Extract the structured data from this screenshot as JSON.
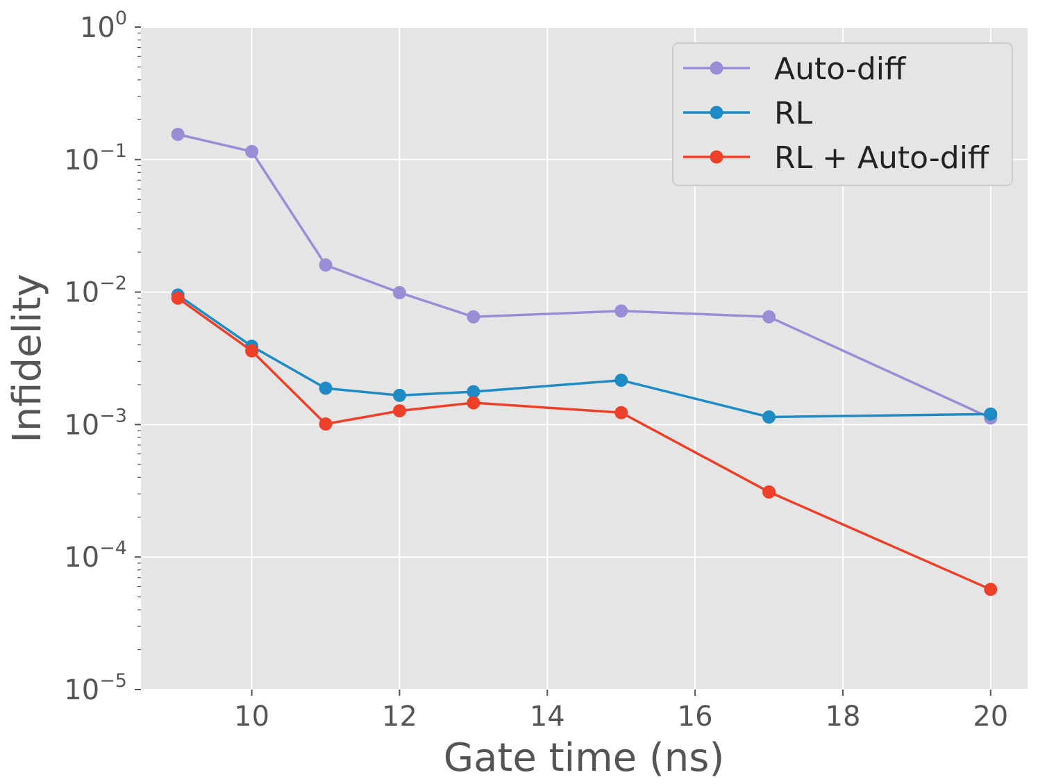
{
  "chart_data": {
    "type": "line",
    "title": "",
    "xlabel": "Gate time (ns)",
    "ylabel": "Infidelity",
    "xlim": [
      8.5,
      20.5
    ],
    "ylim": [
      1e-05,
      1
    ],
    "yscale": "log",
    "grid": true,
    "legend_position": "top-right",
    "x_ticks": [
      10,
      12,
      14,
      16,
      18,
      20
    ],
    "x_tick_labels": [
      "10",
      "12",
      "14",
      "16",
      "18",
      "20"
    ],
    "y_ticks": [
      {
        "value": 1,
        "base": "10",
        "exp": "0"
      },
      {
        "value": 0.1,
        "base": "10",
        "exp": "−1"
      },
      {
        "value": 0.01,
        "base": "10",
        "exp": "−2"
      },
      {
        "value": 0.001,
        "base": "10",
        "exp": "−3"
      },
      {
        "value": 0.0001,
        "base": "10",
        "exp": "−4"
      },
      {
        "value": 1e-05,
        "base": "10",
        "exp": "−5"
      }
    ],
    "x": [
      9,
      10,
      11,
      12,
      13,
      15,
      17,
      20
    ],
    "series": [
      {
        "name": "Auto-diff",
        "color": "#988ED5",
        "values": [
          0.155,
          0.115,
          0.016,
          0.0099,
          0.0065,
          0.0072,
          0.0065,
          0.00112
        ]
      },
      {
        "name": "RL",
        "color": "#1F8BC4",
        "values": [
          0.0095,
          0.0039,
          0.00188,
          0.00166,
          0.00177,
          0.00216,
          0.00114,
          0.0012
        ]
      },
      {
        "name": "RL + Auto-diff",
        "color": "#EE3F28",
        "values": [
          0.009,
          0.0036,
          0.00101,
          0.00127,
          0.00146,
          0.00123,
          0.00031,
          5.7e-05
        ]
      }
    ]
  }
}
